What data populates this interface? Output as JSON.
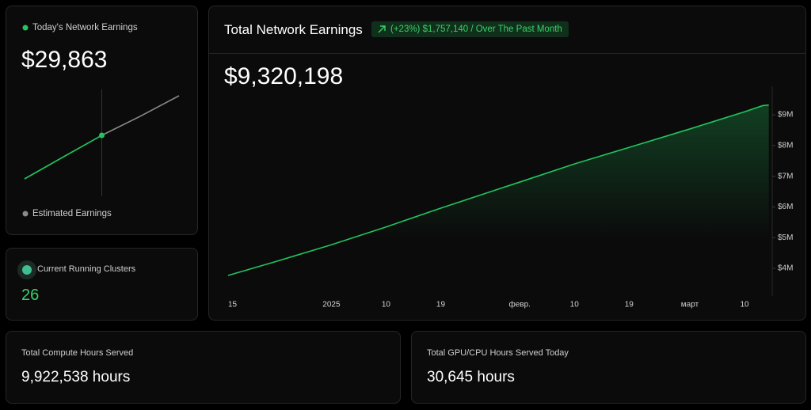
{
  "clusters_card": {
    "label": "Current Running Clusters",
    "value": "26"
  },
  "compute_card": {
    "label": "Total Compute Hours Served",
    "value": "9,922,538 hours"
  },
  "gpu_card": {
    "label": "Total GPU/CPU Hours Served Today",
    "value": "30,645 hours"
  },
  "chart_data": [
    {
      "type": "line",
      "headline": "$29,863",
      "categories": [
        null,
        null,
        null,
        null,
        null
      ],
      "series": [
        {
          "name": "Today's Network Earnings",
          "color": "#22c55e",
          "values": [
            0,
            15000,
            29863,
            null,
            null
          ]
        },
        {
          "name": "Estimated Earnings",
          "color": "#8a8a8a",
          "values": [
            null,
            null,
            29863,
            43000,
            57000
          ]
        }
      ]
    },
    {
      "type": "area",
      "title": "Total Network Earnings",
      "subtitle": "(+23%) $1,757,140 / Over The Past Month",
      "headline": "$9,320,198",
      "color": "#22c55e",
      "x": [
        0,
        8,
        17,
        26,
        35,
        44,
        48,
        57,
        66,
        76,
        85,
        88,
        89
      ],
      "values": [
        3770000,
        4230000,
        4770000,
        5350000,
        5960000,
        6550000,
        6810000,
        7400000,
        7940000,
        8540000,
        9100000,
        9300000,
        9320198
      ],
      "xlim": [
        0,
        89.3
      ],
      "xticks": [
        {
          "value": 0,
          "label": "15"
        },
        {
          "value": 17,
          "label": "2025"
        },
        {
          "value": 26,
          "label": "10"
        },
        {
          "value": 35,
          "label": "19"
        },
        {
          "value": 48,
          "label": "февр."
        },
        {
          "value": 57,
          "label": "10"
        },
        {
          "value": 66,
          "label": "19"
        },
        {
          "value": 76,
          "label": "март"
        },
        {
          "value": 85,
          "label": "10"
        }
      ],
      "ylim": [
        3100000,
        9930000
      ],
      "yticks": [
        {
          "value": 4000000,
          "label": "$4M"
        },
        {
          "value": 5000000,
          "label": "$5M"
        },
        {
          "value": 6000000,
          "label": "$6M"
        },
        {
          "value": 7000000,
          "label": "$7M"
        },
        {
          "value": 8000000,
          "label": "$8M"
        },
        {
          "value": 9000000,
          "label": "$9M"
        }
      ],
      "grid": false
    }
  ]
}
